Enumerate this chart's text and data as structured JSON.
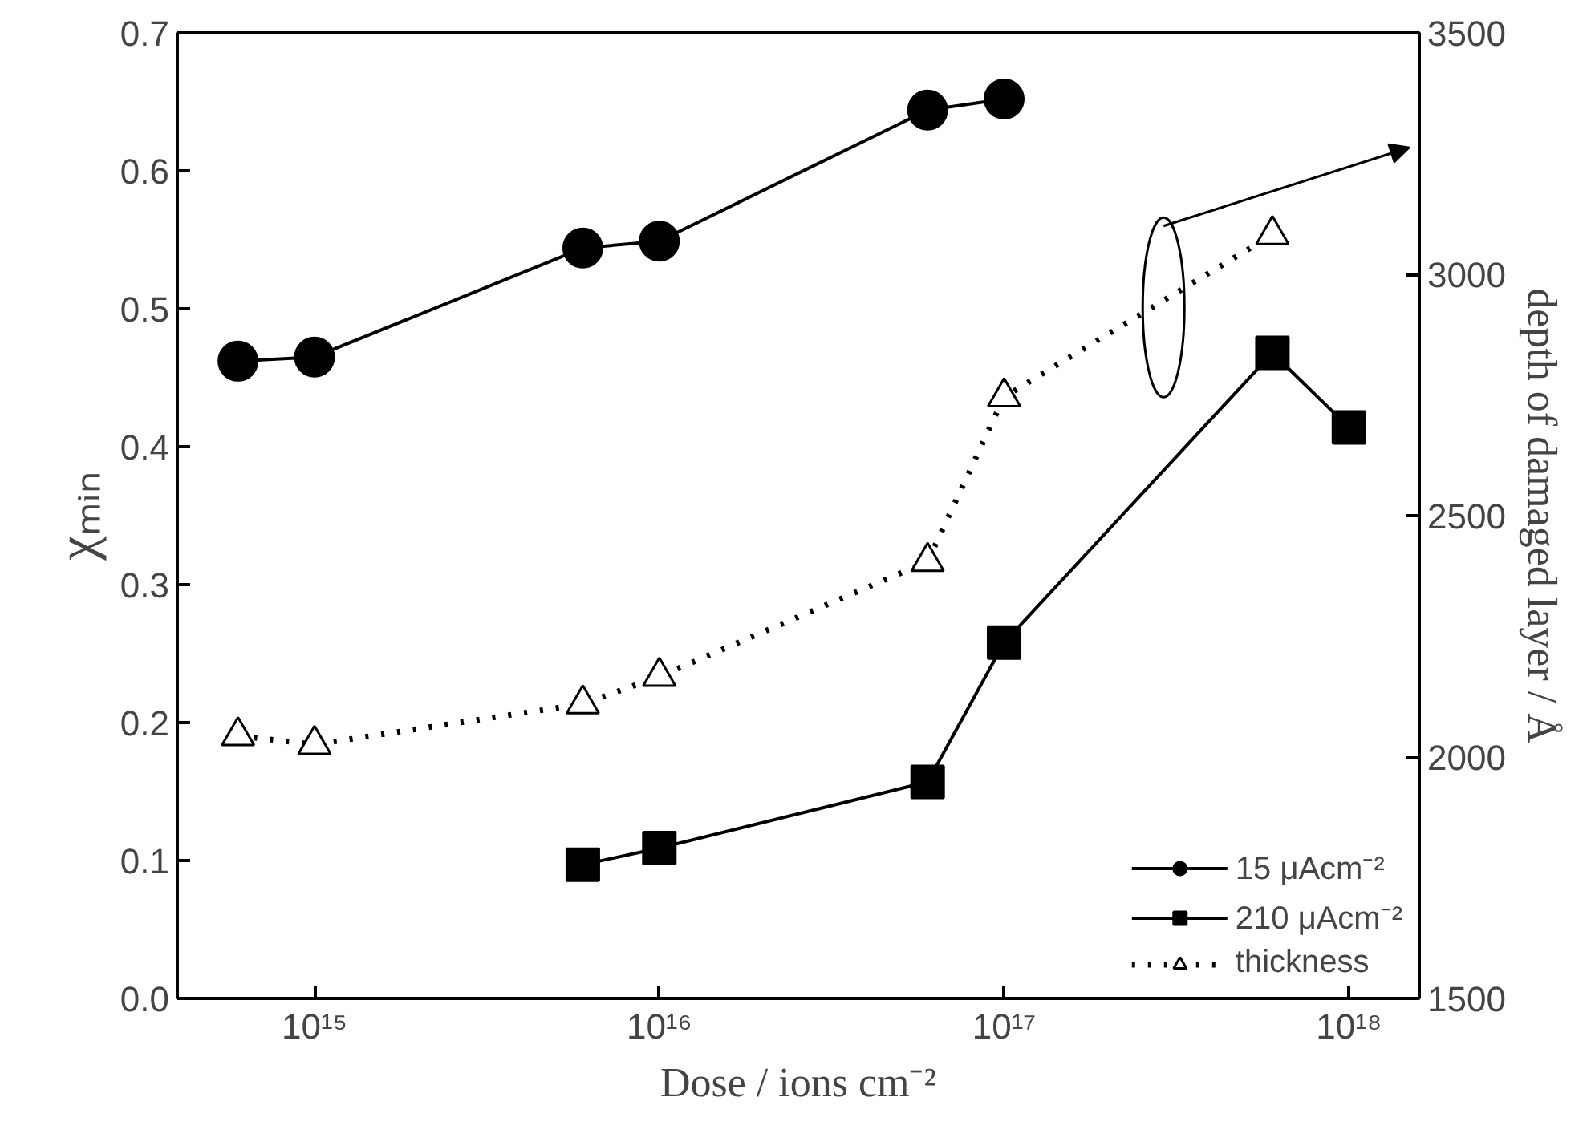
{
  "chart_data": {
    "type": "line",
    "xlabel": "Dose / ions cm⁻²",
    "ylabel": "χₘᵢₙ",
    "y2label": "depth of damaged layer / Å",
    "log": "x",
    "grid": false,
    "legend": "bottom right",
    "xlim": [
      400000000000000.0,
      1.6e+18
    ],
    "xticks": [
      {
        "value": 1000000000000000.0,
        "label": "10¹⁵"
      },
      {
        "value": 1e+16,
        "label": "10¹⁶"
      },
      {
        "value": 1e+17,
        "label": "10¹⁷"
      },
      {
        "value": 1e+18,
        "label": "10¹⁸"
      }
    ],
    "ylim": [
      0,
      0.7
    ],
    "yticks": [
      {
        "value": 0,
        "label": "0.0"
      },
      0.1,
      0.2,
      0.3,
      0.4,
      0.5,
      0.6,
      0.7
    ],
    "y2lim": [
      1500,
      3500
    ],
    "y2ticks": [
      1500,
      2000,
      2500,
      3000,
      3500
    ],
    "series": [
      {
        "name": "15 μAcm⁻²",
        "color": "#000000",
        "marker": "circle",
        "line_style": "solid",
        "x": [
          600000000000000.0,
          1000000000000000.0,
          6000000000000000.0,
          1e+16,
          6e+16,
          1e+17
        ],
        "values": [
          0.462,
          0.465,
          0.544,
          0.549,
          0.644,
          0.652
        ]
      },
      {
        "name": "210 μAcm⁻²",
        "color": "#000000",
        "marker": "square",
        "line_style": "solid",
        "x": [
          6000000000000000.0,
          1e+16,
          6e+16,
          1e+17,
          6e+17,
          1e+18
        ],
        "values": [
          0.097,
          0.109,
          0.157,
          0.258,
          0.468,
          0.414
        ]
      },
      {
        "name": "thickness",
        "color": "#000000",
        "marker": "triangle",
        "line_style": "dotted",
        "axis": "y2",
        "x": [
          600000000000000.0,
          1000000000000000.0,
          6000000000000000.0,
          1e+16,
          6e+16,
          1e+17,
          6e+17
        ],
        "values": [
          2044,
          2026,
          2110,
          2167,
          2405,
          2746,
          3082
        ]
      }
    ]
  }
}
